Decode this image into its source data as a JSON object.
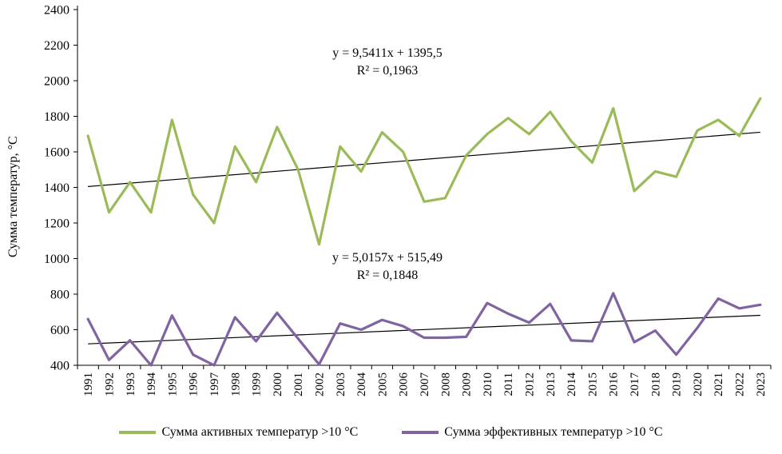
{
  "chart_data": {
    "type": "line",
    "title": "",
    "xlabel": "",
    "ylabel": "Сумма температур, °С",
    "ylim": [
      400,
      2400
    ],
    "ytick_step": 200,
    "grid": false,
    "legend_position": "bottom",
    "categories": [
      "1991",
      "1992",
      "1993",
      "1994",
      "1995",
      "1996",
      "1997",
      "1998",
      "1999",
      "2000",
      "2001",
      "2002",
      "2003",
      "2004",
      "2005",
      "2006",
      "2007",
      "2008",
      "2009",
      "2010",
      "2011",
      "2012",
      "2013",
      "2014",
      "2015",
      "2016",
      "2017",
      "2018",
      "2019",
      "2020",
      "2021",
      "2022",
      "2023"
    ],
    "series": [
      {
        "name": "Сумма активных  температур >10 °С",
        "color": "#9bbb59",
        "values": [
          1690,
          1260,
          1430,
          1260,
          1780,
          1360,
          1200,
          1630,
          1430,
          1740,
          1500,
          1080,
          1630,
          1490,
          1710,
          1600,
          1320,
          1340,
          1580,
          1700,
          1790,
          1700,
          1825,
          1660,
          1540,
          1845,
          1380,
          1490,
          1460,
          1720,
          1780,
          1690,
          1900
        ],
        "trendline": {
          "slope": 9.5411,
          "intercept": 1395.5,
          "equation": "y = 9,5411x  + 1395,5",
          "r_squared": "R² = 0,1963"
        }
      },
      {
        "name": "Сумма эффективных температур >10 °С",
        "color": "#8064a2",
        "values": [
          660,
          430,
          540,
          400,
          680,
          460,
          400,
          670,
          535,
          695,
          550,
          405,
          635,
          600,
          655,
          620,
          555,
          555,
          560,
          750,
          690,
          640,
          745,
          540,
          535,
          805,
          530,
          595,
          460,
          610,
          775,
          720,
          740
        ],
        "trendline": {
          "slope": 5.0157,
          "intercept": 515.49,
          "equation": "y = 5,0157x  + 515,49",
          "r_squared": "R² = 0,1848"
        }
      }
    ]
  },
  "axis": {
    "ylabel": "Сумма температур, °С"
  },
  "annotations": {
    "trend1_eq": "y = 9,5411x  + 1395,5",
    "trend1_r2": "R² = 0,1963",
    "trend2_eq": "y = 5,0157x  + 515,49",
    "trend2_r2": "R² = 0,1848"
  }
}
